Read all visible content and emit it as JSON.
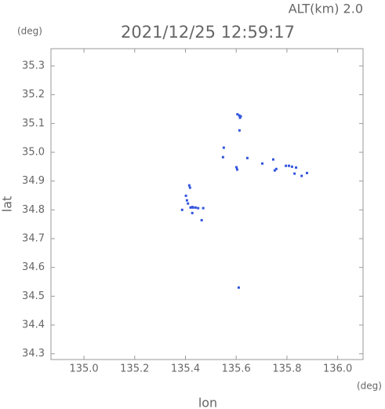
{
  "chart_data": {
    "type": "scatter",
    "title": "2021/12/25 12:59:17",
    "subtitle": "ALT(km) 2.0",
    "x_label": "lon",
    "y_label": "lat",
    "x_unit": "(deg)",
    "y_unit": "(deg)",
    "xlim": [
      134.87,
      136.1
    ],
    "ylim": [
      34.28,
      35.36
    ],
    "xticks": [
      {
        "value": 135,
        "label": "135.0"
      },
      135.2,
      135.4,
      135.6,
      135.8,
      {
        "value": 136,
        "label": "136.0"
      }
    ],
    "yticks": [
      34.3,
      34.4,
      34.5,
      34.6,
      34.7,
      34.8,
      34.9,
      {
        "value": 35,
        "label": "35.0"
      },
      35.1,
      35.2,
      35.3
    ],
    "series": [
      {
        "color": "#3355dd",
        "x": [
          135.605,
          135.612,
          135.618,
          135.615,
          135.613,
          135.551,
          135.548,
          135.601,
          135.604,
          135.644,
          135.703,
          135.746,
          135.752,
          135.758,
          135.796,
          135.808,
          135.82,
          135.836,
          135.83,
          135.858,
          135.879,
          135.415,
          135.418,
          135.402,
          135.406,
          135.41,
          135.42,
          135.427,
          135.43,
          135.44,
          135.45,
          135.47,
          135.427,
          135.464,
          135.387,
          135.61
        ],
        "y": [
          35.132,
          35.128,
          35.125,
          35.12,
          35.076,
          35.016,
          34.983,
          34.948,
          34.94,
          34.98,
          34.961,
          34.975,
          34.937,
          34.942,
          34.953,
          34.953,
          34.95,
          34.947,
          34.926,
          34.918,
          34.928,
          34.885,
          34.877,
          34.849,
          34.833,
          34.822,
          34.808,
          34.81,
          34.808,
          34.808,
          34.806,
          34.806,
          34.789,
          34.764,
          34.8,
          34.53
        ]
      }
    ]
  }
}
